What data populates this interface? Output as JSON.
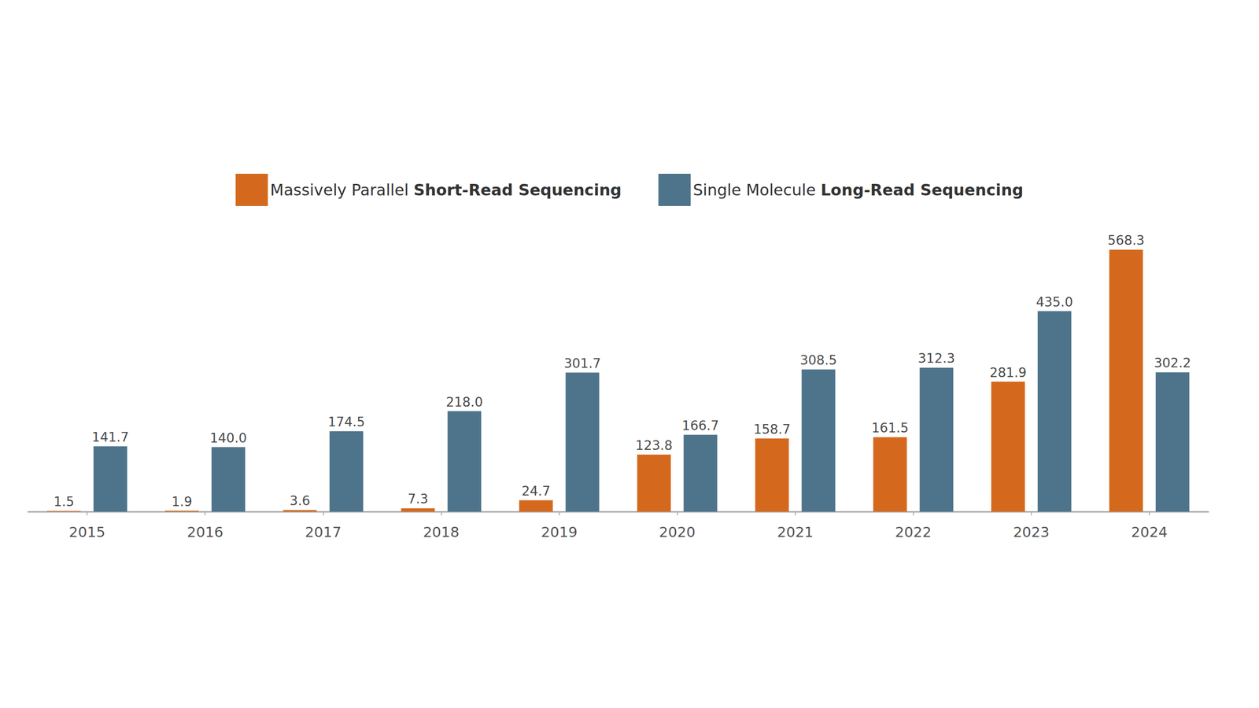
{
  "chart_data": {
    "type": "bar",
    "categories": [
      "2015",
      "2016",
      "2017",
      "2018",
      "2019",
      "2020",
      "2021",
      "2022",
      "2023",
      "2024"
    ],
    "series": [
      {
        "name": "Massively Parallel Short-Read Sequencing",
        "color": "#d4691e",
        "values": [
          1.5,
          1.9,
          3.6,
          7.3,
          24.7,
          123.8,
          158.7,
          161.5,
          281.9,
          568.3
        ],
        "value_labels": [
          "1.5",
          "1.9",
          "3.6",
          "7.3",
          "24.7",
          "123.8",
          "158.7",
          "161.5",
          "281.9",
          "568.3"
        ]
      },
      {
        "name": "Single Molecule Long-Read Sequencing",
        "color": "#4e748b",
        "values": [
          141.7,
          140.0,
          174.5,
          218.0,
          301.7,
          166.7,
          308.5,
          312.3,
          435.0,
          302.2
        ],
        "value_labels": [
          "141.7",
          "140.0",
          "174.5",
          "218.0",
          "301.7",
          "166.7",
          "308.5",
          "312.3",
          "435.0",
          "302.2"
        ]
      }
    ],
    "ylim": [
      0,
      600
    ],
    "yticks": [
      0,
      100,
      200,
      300,
      400,
      500,
      600
    ],
    "grid": false,
    "legend": "top",
    "data_labels": true,
    "tick_labels": "x"
  }
}
